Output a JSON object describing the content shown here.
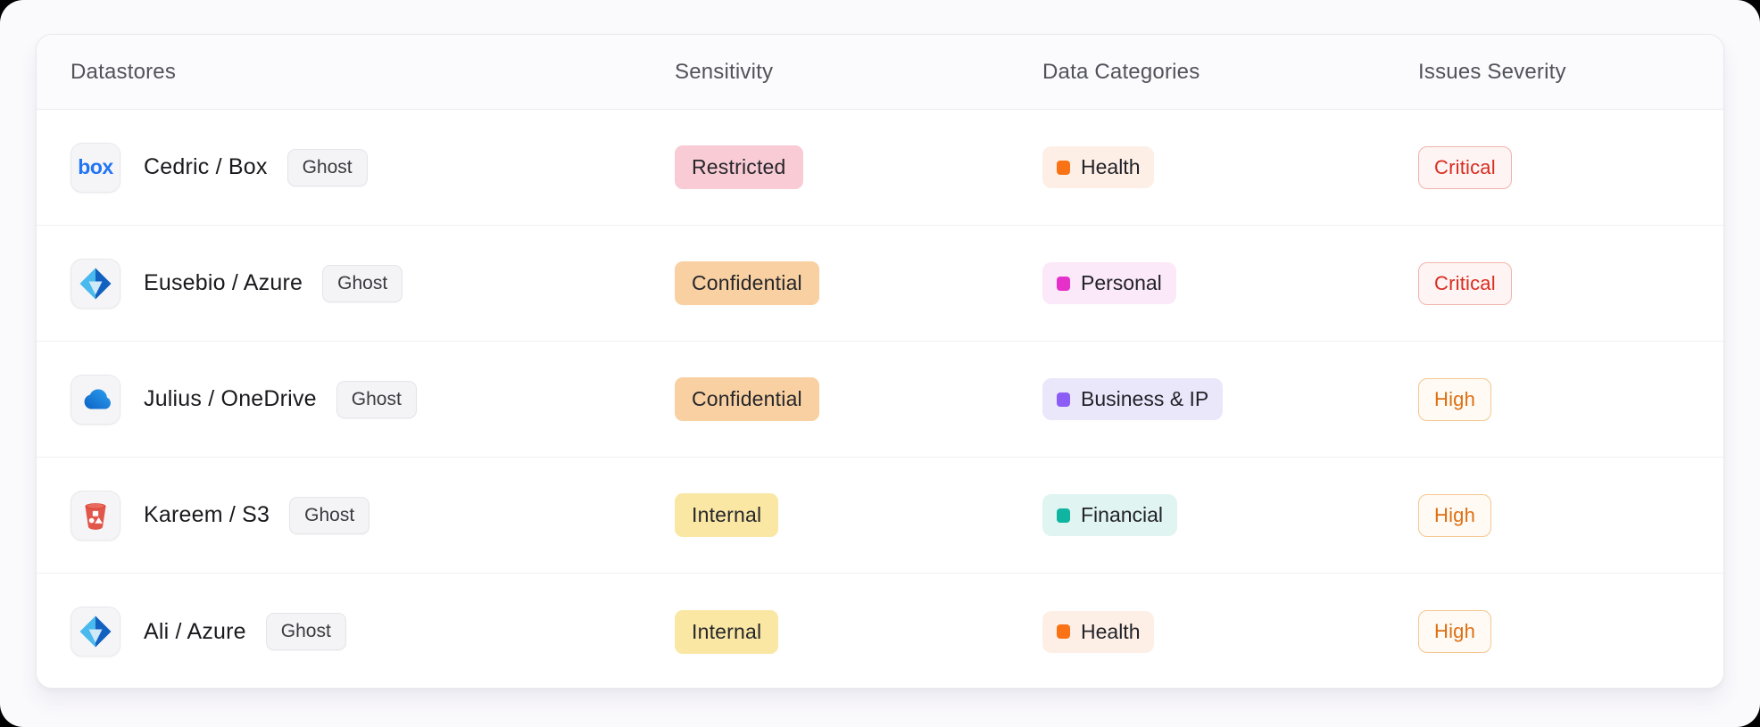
{
  "page": {
    "background": "#faf9fc",
    "card_background": "#ffffff"
  },
  "table": {
    "columns": [
      "Datastores",
      "Sensitivity",
      "Data Categories",
      "Issues Severity"
    ],
    "rows": [
      {
        "name": "Cedric / Box",
        "icon": "box-icon",
        "tag": "Ghost",
        "sensitivity": {
          "label": "Restricted",
          "bg": "#f9cbd5"
        },
        "category": {
          "label": "Health",
          "bg": "#fdefe6",
          "dot": "#f97316"
        },
        "severity": {
          "label": "Critical",
          "text": "#d92d20",
          "bg": "#fef4f3",
          "border": "#f1b3ab"
        }
      },
      {
        "name": "Eusebio / Azure",
        "icon": "azure-icon",
        "tag": "Ghost",
        "sensitivity": {
          "label": "Confidential",
          "bg": "#f8d0a1"
        },
        "category": {
          "label": "Personal",
          "bg": "#fbe8f8",
          "dot": "#e531c9"
        },
        "severity": {
          "label": "Critical",
          "text": "#d92d20",
          "bg": "#fef4f3",
          "border": "#f1b3ab"
        }
      },
      {
        "name": "Julius / OneDrive",
        "icon": "onedrive-icon",
        "tag": "Ghost",
        "sensitivity": {
          "label": "Confidential",
          "bg": "#f8d0a1"
        },
        "category": {
          "label": "Business & IP",
          "bg": "#ebe7fb",
          "dot": "#8b5cf6"
        },
        "severity": {
          "label": "High",
          "text": "#dd6f13",
          "bg": "#fffaf4",
          "border": "#f3c78f"
        }
      },
      {
        "name": "Kareem / S3",
        "icon": "s3-bucket-icon",
        "tag": "Ghost",
        "sensitivity": {
          "label": "Internal",
          "bg": "#f9e7a3"
        },
        "category": {
          "label": "Financial",
          "bg": "#e0f5f1",
          "dot": "#10b5a2"
        },
        "severity": {
          "label": "High",
          "text": "#dd6f13",
          "bg": "#fffaf4",
          "border": "#f3c78f"
        }
      },
      {
        "name": "Ali / Azure",
        "icon": "azure-icon",
        "tag": "Ghost",
        "sensitivity": {
          "label": "Internal",
          "bg": "#f9e7a3"
        },
        "category": {
          "label": "Health",
          "bg": "#fdefe6",
          "dot": "#f97316"
        },
        "severity": {
          "label": "High",
          "text": "#dd6f13",
          "bg": "#fffaf4",
          "border": "#f3c78f"
        }
      }
    ]
  }
}
